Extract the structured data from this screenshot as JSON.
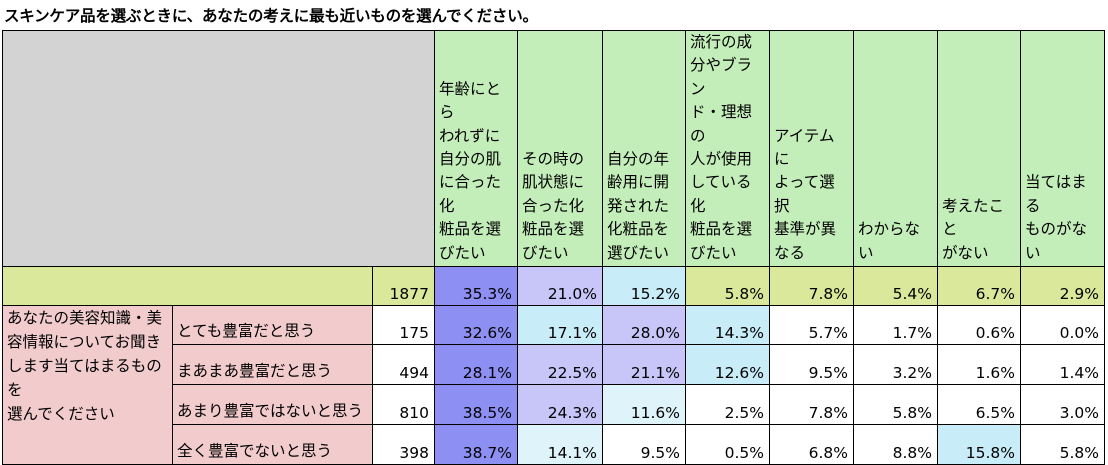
{
  "title": "スキンケア品を選ぶときに、あなたの考えに最も近いものを選んでください。",
  "colors": {
    "header_gray": "#d3d3d3",
    "header_green": "#c3eeb9",
    "total_row": "#d9e89a",
    "row_group": "#f2cccc",
    "heat_strong": "#8d8ff3",
    "heat_medium": "#c8c6f9",
    "heat_light": "#c8edf9",
    "heat_lightest": "#dff4fa",
    "white": "#ffffff"
  },
  "chart_data": {
    "type": "table",
    "title": "スキンケア品を選ぶときに、あなたの考えに最も近いものを選んでください。",
    "columns": [
      [
        "年齢にとら",
        "われずに",
        "自分の肌",
        "に合った化",
        "粧品を選",
        "びたい"
      ],
      [
        "その時の",
        "肌状態に",
        "合った化",
        "粧品を選",
        "びたい"
      ],
      [
        "自分の年",
        "齢用に開",
        "発された",
        "化粧品を",
        "選びたい"
      ],
      [
        "流行の成",
        "分やブラン",
        "ド・理想の",
        "人が使用",
        "している化",
        "粧品を選",
        "びたい"
      ],
      [
        "アイテムに",
        "よって選択",
        "基準が異",
        "なる"
      ],
      [
        "わからない"
      ],
      [
        "考えたこと",
        "がない"
      ],
      [
        "当てはまる",
        "ものがない"
      ]
    ],
    "total": {
      "n": "1877",
      "values": [
        "35.3%",
        "21.0%",
        "15.2%",
        "5.8%",
        "7.8%",
        "5.4%",
        "6.7%",
        "2.9%"
      ],
      "shades": [
        "strong",
        "medium",
        "light",
        "none",
        "none",
        "none",
        "none",
        "none"
      ]
    },
    "group_label": [
      "あなたの美容知識・美",
      "容情報についてお聞き",
      "します当てはまるものを",
      "選んでください"
    ],
    "rows": [
      {
        "label": "とても豊富だと思う",
        "n": "175",
        "values": [
          "32.6%",
          "17.1%",
          "28.0%",
          "14.3%",
          "5.7%",
          "1.7%",
          "0.6%",
          "0.0%"
        ],
        "shades": [
          "strong",
          "light",
          "medium",
          "light",
          "none",
          "none",
          "none",
          "none"
        ]
      },
      {
        "label": "まあまあ豊富だと思う",
        "n": "494",
        "values": [
          "28.1%",
          "22.5%",
          "21.1%",
          "12.6%",
          "9.5%",
          "3.2%",
          "1.6%",
          "1.4%"
        ],
        "shades": [
          "strong",
          "medium",
          "medium",
          "light",
          "none",
          "none",
          "none",
          "none"
        ]
      },
      {
        "label": "あまり豊富ではないと思う",
        "n": "810",
        "values": [
          "38.5%",
          "24.3%",
          "11.6%",
          "2.5%",
          "7.8%",
          "5.8%",
          "6.5%",
          "3.0%"
        ],
        "shades": [
          "strong",
          "medium",
          "lightest",
          "none",
          "none",
          "none",
          "none",
          "none"
        ]
      },
      {
        "label": "全く豊富でないと思う",
        "n": "398",
        "values": [
          "38.7%",
          "14.1%",
          "9.5%",
          "0.5%",
          "6.8%",
          "8.8%",
          "15.8%",
          "5.8%"
        ],
        "shades": [
          "strong",
          "lightest",
          "none",
          "none",
          "none",
          "none",
          "light",
          "none"
        ]
      }
    ]
  }
}
